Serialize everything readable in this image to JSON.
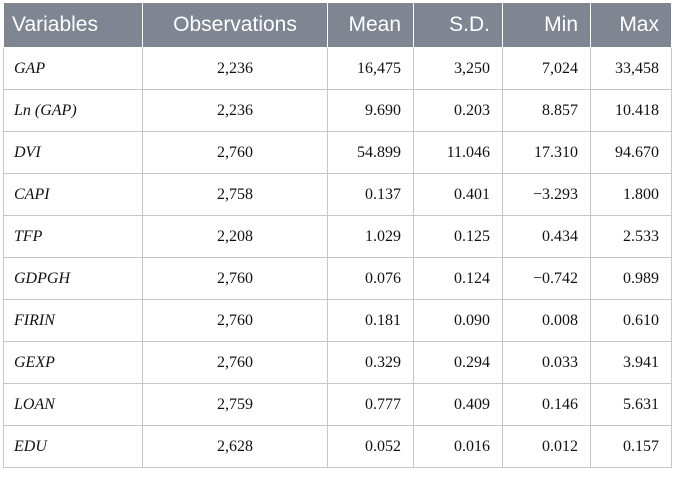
{
  "table": {
    "headers": [
      "Variables",
      "Observations",
      "Mean",
      "S.D.",
      "Min",
      "Max"
    ],
    "rows": [
      [
        "GAP",
        "2,236",
        "16,475",
        "3,250",
        "7,024",
        "33,458"
      ],
      [
        "Ln (GAP)",
        "2,236",
        "9.690",
        "0.203",
        "8.857",
        "10.418"
      ],
      [
        "DVI",
        "2,760",
        "54.899",
        "11.046",
        "17.310",
        "94.670"
      ],
      [
        "CAPI",
        "2,758",
        "0.137",
        "0.401",
        "−3.293",
        "1.800"
      ],
      [
        "TFP",
        "2,208",
        "1.029",
        "0.125",
        "0.434",
        "2.533"
      ],
      [
        "GDPGH",
        "2,760",
        "0.076",
        "0.124",
        "−0.742",
        "0.989"
      ],
      [
        "FIRIN",
        "2,760",
        "0.181",
        "0.090",
        "0.008",
        "0.610"
      ],
      [
        "GEXP",
        "2,760",
        "0.329",
        "0.294",
        "0.033",
        "3.941"
      ],
      [
        "LOAN",
        "2,759",
        "0.777",
        "0.409",
        "0.146",
        "5.631"
      ],
      [
        "EDU",
        "2,628",
        "0.052",
        "0.016",
        "0.012",
        "0.157"
      ]
    ]
  },
  "colors": {
    "header_bg": "#7f8591",
    "header_text": "#ffffff",
    "grid": "#c7c7c7"
  }
}
